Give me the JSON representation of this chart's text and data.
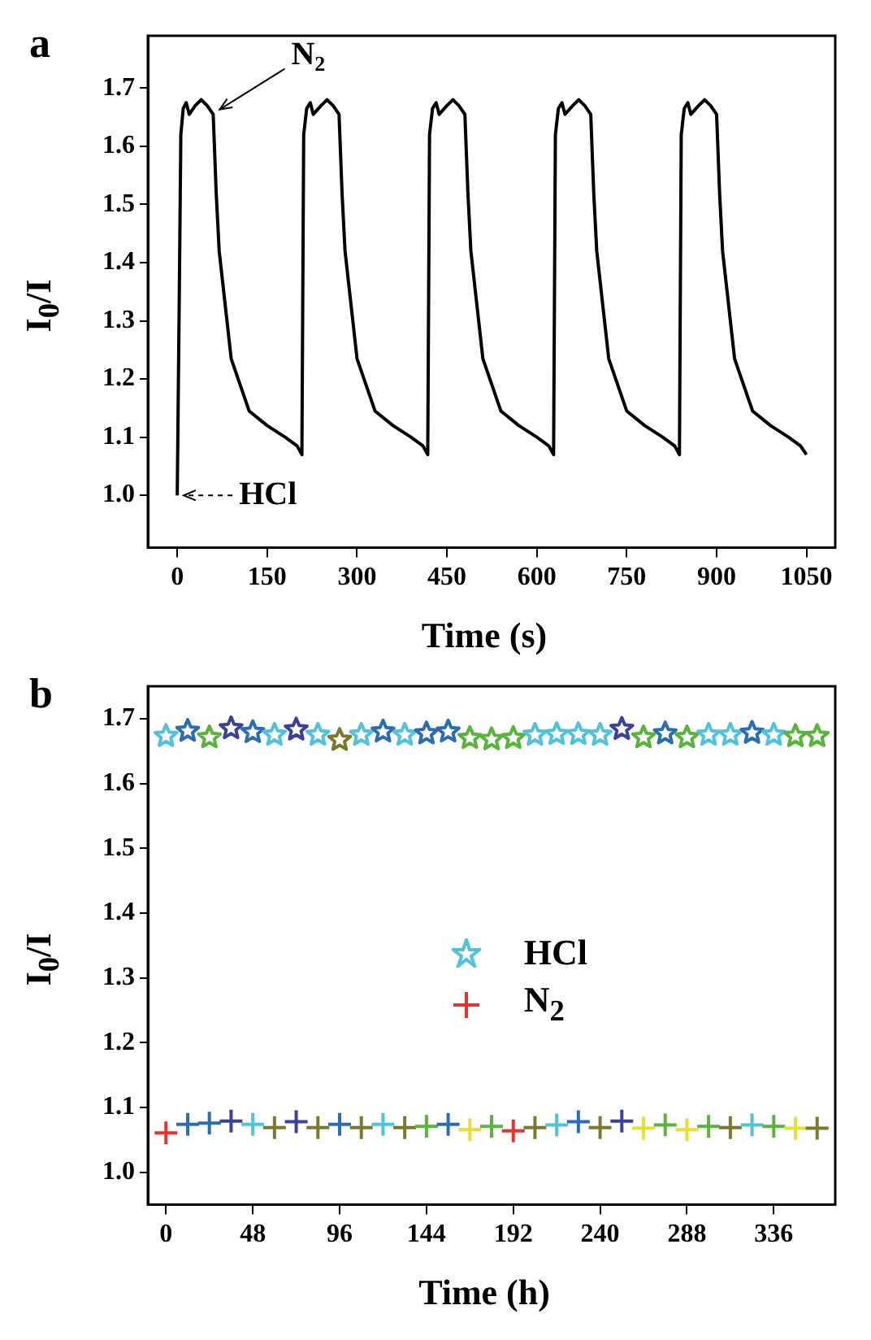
{
  "chart_data": [
    {
      "type": "line",
      "xlabel": "Time (s)",
      "ylabel": "I$_{0}$/I",
      "color": "#000000",
      "annotations": [
        "a",
        {
          "text": "N$_{2}$",
          "x": 60,
          "y": 1.655
        },
        {
          "text": "HCl",
          "x": 0,
          "y": 1.0
        }
      ],
      "x": [
        0,
        3,
        6,
        10,
        15,
        20,
        30,
        40,
        50,
        60,
        65,
        70,
        90,
        120,
        150,
        180,
        200,
        208,
        211,
        216,
        222,
        227,
        240,
        250,
        260,
        270,
        275,
        280,
        300,
        330,
        360,
        390,
        410,
        418,
        421,
        426,
        432,
        437,
        450,
        460,
        470,
        480,
        485,
        490,
        510,
        540,
        570,
        600,
        620,
        628,
        631,
        636,
        642,
        647,
        660,
        670,
        680,
        690,
        695,
        700,
        720,
        750,
        780,
        810,
        830,
        838,
        841,
        846,
        852,
        857,
        870,
        880,
        890,
        900,
        905,
        910,
        930,
        960,
        990,
        1020,
        1040,
        1050
      ],
      "values": [
        1.0,
        1.3,
        1.62,
        1.665,
        1.675,
        1.655,
        1.67,
        1.68,
        1.67,
        1.655,
        1.52,
        1.42,
        1.235,
        1.145,
        1.12,
        1.1,
        1.085,
        1.07,
        1.62,
        1.665,
        1.675,
        1.655,
        1.67,
        1.68,
        1.67,
        1.655,
        1.52,
        1.42,
        1.235,
        1.145,
        1.12,
        1.1,
        1.085,
        1.07,
        1.62,
        1.665,
        1.675,
        1.655,
        1.67,
        1.68,
        1.67,
        1.655,
        1.52,
        1.42,
        1.235,
        1.145,
        1.12,
        1.1,
        1.085,
        1.07,
        1.62,
        1.665,
        1.675,
        1.655,
        1.67,
        1.68,
        1.67,
        1.655,
        1.52,
        1.42,
        1.235,
        1.145,
        1.12,
        1.1,
        1.085,
        1.07,
        1.62,
        1.665,
        1.675,
        1.655,
        1.67,
        1.68,
        1.67,
        1.655,
        1.52,
        1.42,
        1.235,
        1.145,
        1.12,
        1.1,
        1.085,
        1.07
      ],
      "xlim": [
        -49,
        1098
      ],
      "ylim": [
        0.91,
        1.79
      ],
      "xticks": [
        0,
        150,
        300,
        450,
        600,
        750,
        900,
        1050
      ],
      "yticks": [
        {
          "value": 1,
          "label": "1.0"
        },
        1.1,
        1.2,
        1.3,
        1.4,
        1.5,
        1.6,
        1.7
      ]
    },
    {
      "type": "scatter",
      "xlabel": "Time (h)",
      "ylabel": "I$_{0}$/I",
      "legend": "center",
      "annotations": [
        "b"
      ],
      "x": [
        0,
        12,
        24,
        36,
        48,
        60,
        72,
        84,
        96,
        108,
        120,
        132,
        144,
        156,
        168,
        180,
        192,
        204,
        216,
        228,
        240,
        252,
        264,
        276,
        288,
        300,
        312,
        324,
        336,
        348,
        360
      ],
      "series": [
        {
          "name": "HCl",
          "marker": "star",
          "color": "#4fc3dc",
          "values": [
            1.673,
            1.681,
            1.671,
            1.685,
            1.679,
            1.675,
            1.683,
            1.675,
            1.667,
            1.675,
            1.68,
            1.675,
            1.677,
            1.68,
            1.67,
            1.668,
            1.67,
            1.675,
            1.676,
            1.676,
            1.675,
            1.684,
            1.671,
            1.677,
            1.671,
            1.675,
            1.675,
            1.678,
            1.675,
            1.673,
            1.673
          ],
          "colors": [
            "#4fc3dc",
            "#2a6db5",
            "#5ab43c",
            "#3a3fa0",
            "#2a6db5",
            "#4fc3dc",
            "#3a3fa0",
            "#4fc3dc",
            "#7a7a2a",
            "#4fc3dc",
            "#2a6db5",
            "#4fc3dc",
            "#2a6db5",
            "#2a6db5",
            "#5ab43c",
            "#5ab43c",
            "#5ab43c",
            "#4fc3dc",
            "#4fc3dc",
            "#4fc3dc",
            "#4fc3dc",
            "#3a3fa0",
            "#5ab43c",
            "#2a6db5",
            "#5ab43c",
            "#4fc3dc",
            "#4fc3dc",
            "#2a6db5",
            "#4fc3dc",
            "#5ab43c",
            "#5ab43c"
          ]
        },
        {
          "name": "N$_{2}$",
          "marker": "cross",
          "color": "#e8322c",
          "values": [
            1.061,
            1.074,
            1.076,
            1.079,
            1.074,
            1.069,
            1.078,
            1.069,
            1.074,
            1.069,
            1.074,
            1.069,
            1.071,
            1.074,
            1.066,
            1.071,
            1.064,
            1.069,
            1.073,
            1.078,
            1.069,
            1.079,
            1.068,
            1.073,
            1.066,
            1.071,
            1.069,
            1.073,
            1.071,
            1.068,
            1.068
          ],
          "colors": [
            "#e8322c",
            "#2a6db5",
            "#2a6db5",
            "#3a3fa0",
            "#4fc3dc",
            "#7a7a2a",
            "#3a3fa0",
            "#7a7a2a",
            "#2a6db5",
            "#7a7a2a",
            "#4fc3dc",
            "#7a7a2a",
            "#5ab43c",
            "#2a6db5",
            "#e8e030",
            "#5ab43c",
            "#e8322c",
            "#7a7a2a",
            "#4fc3dc",
            "#2a6db5",
            "#7a7a2a",
            "#3a3fa0",
            "#e8e030",
            "#5ab43c",
            "#e8e030",
            "#5ab43c",
            "#7a7a2a",
            "#4fc3dc",
            "#5ab43c",
            "#e8e030",
            "#7a7a2a"
          ]
        }
      ],
      "xlim": [
        -10,
        370
      ],
      "ylim": [
        0.95,
        1.75
      ],
      "xticks": [
        0,
        48,
        96,
        144,
        192,
        240,
        288,
        336
      ],
      "yticks": [
        {
          "value": 1,
          "label": "1.0"
        },
        1.1,
        1.2,
        1.3,
        1.4,
        1.5,
        1.6,
        1.7
      ]
    }
  ]
}
